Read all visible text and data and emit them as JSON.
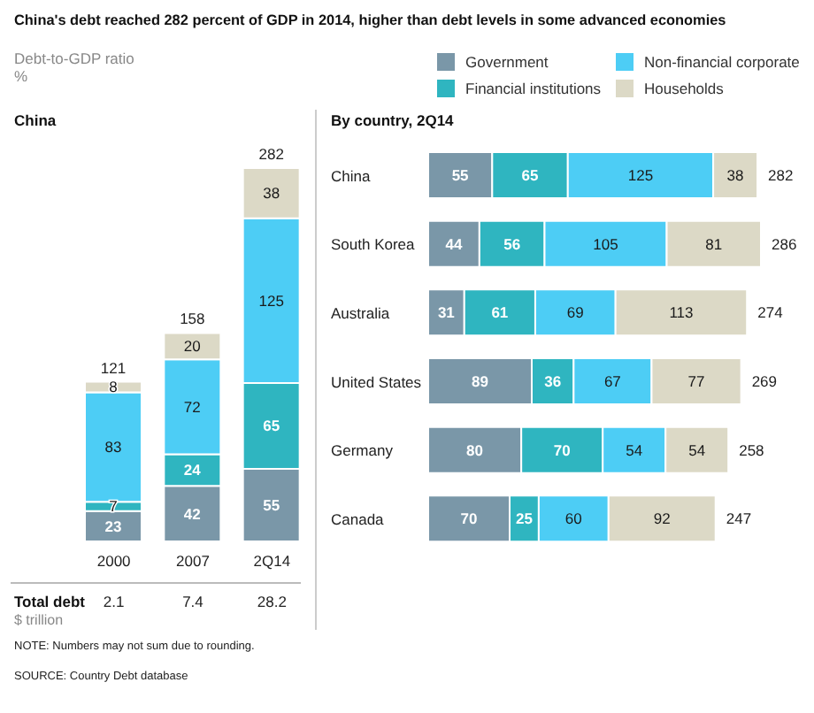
{
  "chart_data": [
    {
      "type": "bar",
      "title": "China's debt reached 282 percent of GDP in 2014, higher than debt levels in some advanced economies",
      "ylabel": "Debt-to-GDP ratio\n%",
      "subtitle": "China",
      "stacked": true,
      "data_labels": true,
      "categories": [
        "2000",
        "2007",
        "2Q14"
      ],
      "series": [
        {
          "color": "#7a97a8",
          "values": [
            23,
            42,
            55
          ]
        },
        {
          "color": "#2fb5c0",
          "values": [
            7,
            24,
            65
          ]
        },
        {
          "color": "#4dcdf5",
          "values": [
            83,
            72,
            125
          ]
        },
        {
          "color": "#dcd9c6",
          "values": [
            8,
            20,
            38
          ]
        }
      ],
      "totals": [
        "121",
        "158",
        "282"
      ],
      "annotations": [
        "Total debt",
        "$ trillion",
        "2.1",
        "7.4",
        "28.2",
        "NOTE: Numbers may not sum due to rounding.",
        "SOURCE: Country Debt database"
      ]
    },
    {
      "type": "bar",
      "subtitle": "By country, 2Q14",
      "stacked": true,
      "orientation": "horizontal",
      "data_labels": true,
      "legend": "top right",
      "categories": [
        "China",
        "South Korea",
        "Australia",
        "United States",
        "Germany",
        "Canada"
      ],
      "series": [
        {
          "name": "Government",
          "color": "#7a97a8",
          "values": [
            55,
            44,
            31,
            89,
            80,
            70
          ]
        },
        {
          "name": "Financial institutions",
          "color": "#2fb5c0",
          "values": [
            65,
            56,
            61,
            36,
            70,
            25
          ]
        },
        {
          "name": "Non-financial corporate",
          "color": "#4dcdf5",
          "values": [
            125,
            105,
            69,
            67,
            54,
            60
          ]
        },
        {
          "name": "Households",
          "color": "#dcd9c6",
          "values": [
            38,
            81,
            113,
            77,
            54,
            92
          ]
        }
      ],
      "totals": [
        "282",
        "286",
        "274",
        "269",
        "258",
        "247"
      ]
    }
  ]
}
